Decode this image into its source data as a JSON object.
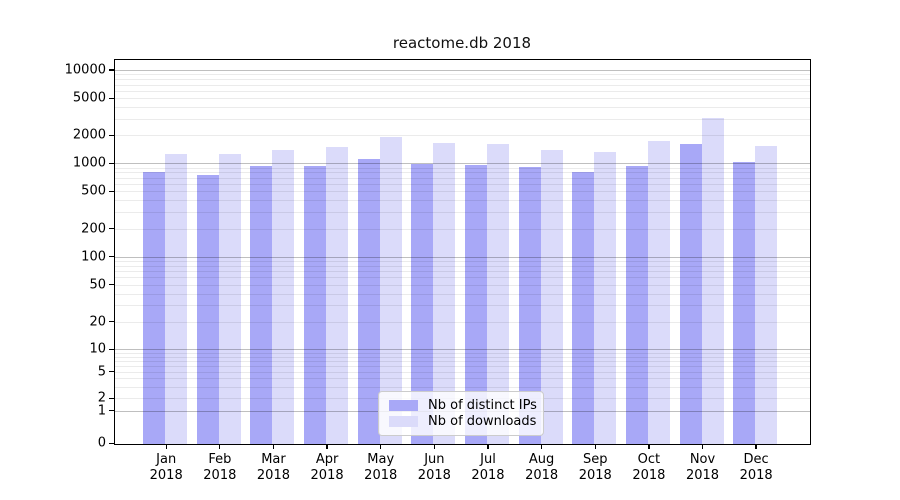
{
  "chart_data": {
    "type": "bar",
    "title": "reactome.db 2018",
    "categories": [
      "Jan 2018",
      "Feb 2018",
      "Mar 2018",
      "Apr 2018",
      "May 2018",
      "Jun 2018",
      "Jul 2018",
      "Aug 2018",
      "Sep 2018",
      "Oct 2018",
      "Nov 2018",
      "Dec 2018"
    ],
    "series": [
      {
        "name": "Nb of distinct IPs",
        "color": "#a8a8f7",
        "values": [
          800,
          750,
          930,
          930,
          1100,
          980,
          960,
          910,
          800,
          940,
          1600,
          1030
        ]
      },
      {
        "name": "Nb of downloads",
        "color": "#dbdbfa",
        "values": [
          1260,
          1260,
          1390,
          1480,
          1930,
          1660,
          1620,
          1380,
          1310,
          1730,
          3030,
          1530
        ]
      }
    ],
    "y_axis": {
      "scale": "symlog",
      "ticks": [
        0,
        1,
        2,
        5,
        10,
        20,
        50,
        100,
        200,
        500,
        1000,
        2000,
        5000,
        10000
      ],
      "range": [
        0,
        10000
      ],
      "grid": "major and minor"
    },
    "x_axis": {
      "year_line": "2018"
    },
    "legend": {
      "position": "lower center",
      "entries": [
        "Nb of distinct IPs",
        "Nb of downloads"
      ]
    }
  }
}
